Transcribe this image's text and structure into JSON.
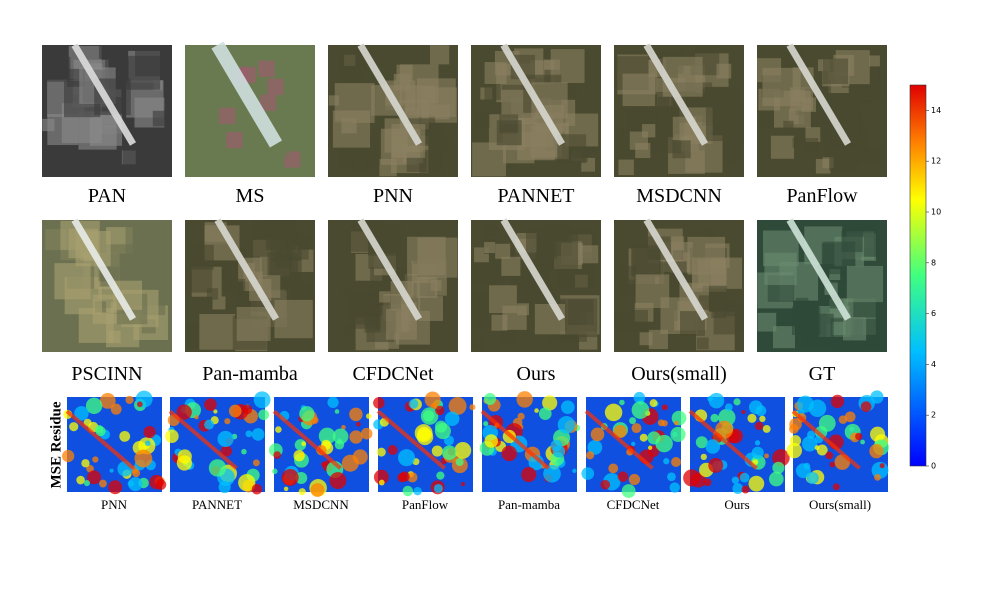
{
  "row1": {
    "captions": [
      "PAN",
      "MS",
      "PNN",
      "PANNET",
      "MSDCNN",
      "PanFlow"
    ]
  },
  "row2": {
    "captions": [
      "PSCINN",
      "Pan-mamba",
      "CFDCNet",
      "Ours",
      "Ours(small)",
      "GT"
    ]
  },
  "residue": {
    "label": "MSE Residue",
    "captions": [
      "PNN",
      "PANNET",
      "MSDCNN",
      "PanFlow",
      "Pan-mamba",
      "CFDCNet",
      "Ours",
      "Ours(small)"
    ]
  },
  "colorbar": {
    "lim": [
      0,
      15
    ],
    "ticks": [
      0,
      2,
      4,
      6,
      8,
      10,
      12,
      14
    ]
  }
}
